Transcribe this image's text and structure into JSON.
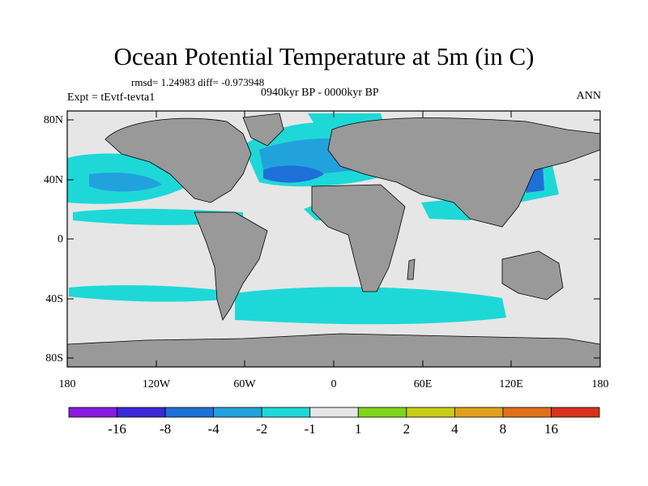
{
  "title": "Ocean Potential Temperature at 5m (in C)",
  "stats": "rmsd= 1.24983 diff= -0.973948",
  "period": "0940kyr BP - 0000kyr BP",
  "experiment": "Expt = tEvtf-tevta1",
  "season": "ANN",
  "lat_labels": [
    "80N",
    "40N",
    "0",
    "40S",
    "80S"
  ],
  "lon_labels": [
    "180",
    "120W",
    "60W",
    "0",
    "60E",
    "120E",
    "180"
  ],
  "colorbar": {
    "labels": [
      "-16",
      "-8",
      "-4",
      "-2",
      "-1",
      "1",
      "2",
      "4",
      "8",
      "16"
    ],
    "colors": [
      "#8a1be0",
      "#3a28d8",
      "#1f6fd8",
      "#22a2dc",
      "#1ed8d8",
      "#e6e6e6",
      "#7fd61c",
      "#c8cc14",
      "#e0a21c",
      "#e0701c",
      "#d8321c"
    ]
  },
  "map_colors": {
    "land": "#999999",
    "ocean_neutral": "#e6e6e6",
    "cyan": "#1ed8d8",
    "light_blue": "#22a2dc",
    "blue": "#1f6fd8"
  }
}
